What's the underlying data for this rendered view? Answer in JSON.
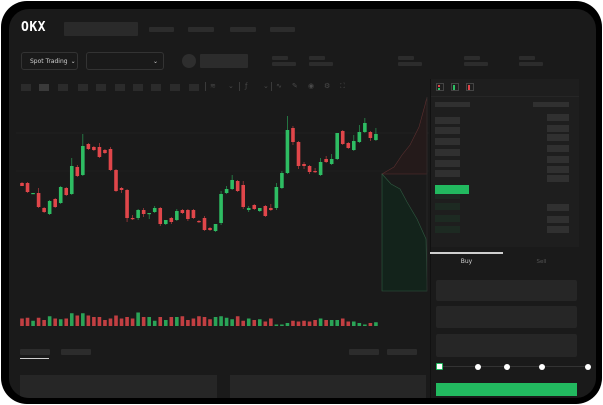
{
  "header": {
    "logo": "OKX"
  },
  "market": {
    "mode_select": "Spot Trading",
    "mode_chevron": "chevron-down-icon",
    "pair_chevron": "chevron-down-icon"
  },
  "orderbook": {
    "icons": [
      "orderbook-both-icon",
      "orderbook-buy-icon",
      "orderbook-sell-icon"
    ]
  },
  "order_form": {
    "tabs": [
      "Buy",
      "Sell"
    ],
    "active_tab": "Buy",
    "slider_percent": 0,
    "slider_stops": [
      0,
      25,
      50,
      75,
      100
    ]
  },
  "colors": {
    "up": "#2ebd63",
    "down": "#e0464a",
    "background": "#1a1a1a",
    "accent": "#22b95f"
  },
  "chart_data": {
    "type": "candlestick",
    "grid": true,
    "candles": [
      [
        58,
        59,
        55,
        55
      ],
      [
        58,
        59,
        48,
        49
      ],
      [
        47,
        48,
        47,
        48
      ],
      [
        48,
        53,
        33,
        34
      ],
      [
        33,
        34,
        28,
        29
      ],
      [
        27,
        41,
        26,
        40
      ],
      [
        42,
        43,
        33,
        34
      ],
      [
        38,
        55,
        37,
        54
      ],
      [
        53,
        54,
        45,
        46
      ],
      [
        47,
        83,
        46,
        75
      ],
      [
        74,
        76,
        64,
        65
      ],
      [
        66,
        107,
        65,
        95
      ],
      [
        97,
        98,
        91,
        92
      ],
      [
        94,
        95,
        90,
        91
      ],
      [
        94,
        98,
        83,
        84
      ],
      [
        91,
        92,
        87,
        88
      ],
      [
        92,
        94,
        70,
        71
      ],
      [
        71,
        72,
        49,
        50
      ],
      [
        53,
        54,
        48,
        51
      ],
      [
        51,
        52,
        19,
        23
      ],
      [
        23,
        26,
        21,
        22
      ],
      [
        23,
        32,
        21,
        31
      ],
      [
        31,
        33,
        24,
        27
      ],
      [
        27,
        28,
        22,
        28
      ],
      [
        29,
        35,
        28,
        33
      ],
      [
        33,
        34,
        15,
        17
      ],
      [
        17,
        21,
        16,
        21
      ],
      [
        23,
        24,
        17,
        19
      ],
      [
        21,
        32,
        20,
        30
      ],
      [
        31,
        32,
        27,
        28
      ],
      [
        31,
        32,
        20,
        22
      ],
      [
        31,
        32,
        22,
        23
      ],
      [
        20,
        21,
        18,
        19
      ],
      [
        23,
        25,
        10,
        11
      ],
      [
        13,
        14,
        10,
        11
      ],
      [
        10,
        17,
        9,
        17
      ],
      [
        18,
        50,
        16,
        47
      ],
      [
        48,
        55,
        47,
        52
      ],
      [
        52,
        66,
        51,
        61
      ],
      [
        60,
        61,
        49,
        50
      ],
      [
        56,
        60,
        32,
        34
      ],
      [
        31,
        35,
        29,
        33
      ],
      [
        36,
        37,
        31,
        32
      ],
      [
        30,
        33,
        29,
        33
      ],
      [
        35,
        36,
        24,
        25
      ],
      [
        33,
        37,
        30,
        31
      ],
      [
        33,
        58,
        31,
        54
      ],
      [
        53,
        70,
        52,
        68
      ],
      [
        68,
        125,
        67,
        111
      ],
      [
        113,
        115,
        96,
        99
      ],
      [
        99,
        100,
        72,
        75
      ],
      [
        77,
        79,
        72,
        75
      ],
      [
        75,
        76,
        67,
        69
      ],
      [
        70,
        73,
        68,
        69
      ],
      [
        66,
        83,
        65,
        79
      ],
      [
        82,
        85,
        78,
        79
      ],
      [
        77,
        87,
        76,
        82
      ],
      [
        82,
        108,
        81,
        108
      ],
      [
        110,
        111,
        96,
        97
      ],
      [
        98,
        99,
        92,
        93
      ],
      [
        91,
        106,
        90,
        100
      ],
      [
        99,
        116,
        98,
        109
      ],
      [
        109,
        123,
        108,
        118
      ],
      [
        109,
        110,
        100,
        103
      ],
      [
        101,
        113,
        100,
        107
      ]
    ],
    "volume": [
      10,
      11,
      7,
      11,
      8,
      13,
      10,
      9,
      10,
      17,
      14,
      17,
      14,
      12,
      12,
      8,
      10,
      14,
      10,
      12,
      10,
      18,
      12,
      12,
      7,
      12,
      8,
      12,
      12,
      13,
      8,
      10,
      13,
      12,
      9,
      12,
      13,
      11,
      9,
      13,
      7,
      10,
      8,
      9,
      6,
      10,
      2,
      2,
      4,
      7,
      6,
      7,
      6,
      8,
      10,
      8,
      8,
      8,
      10,
      6,
      6,
      4,
      2,
      4,
      5
    ],
    "depth": {
      "asks": "descending",
      "bids": "ascending"
    }
  }
}
